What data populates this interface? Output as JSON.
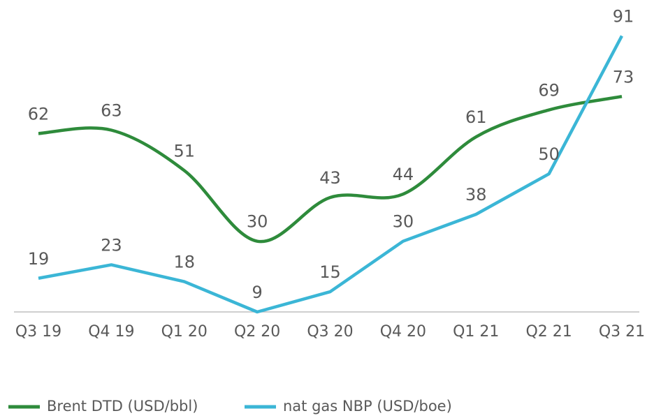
{
  "chart_data": {
    "type": "line",
    "categories": [
      "Q3 19",
      "Q4 19",
      "Q1 20",
      "Q2 20",
      "Q3 20",
      "Q4 20",
      "Q1 21",
      "Q2 21",
      "Q3 21"
    ],
    "series": [
      {
        "name": "Brent DTD (USD/bbl)",
        "color": "#2e8b3b",
        "smooth": true,
        "values": [
          62,
          63,
          51,
          30,
          43,
          44,
          61,
          69,
          73
        ]
      },
      {
        "name": "nat gas NBP (USD/boe)",
        "color": "#3bb6d6",
        "smooth": false,
        "values": [
          19,
          23,
          18,
          9,
          15,
          30,
          38,
          50,
          91
        ]
      }
    ],
    "ylim": [
      9,
      100
    ],
    "legend": "bottom-left"
  }
}
